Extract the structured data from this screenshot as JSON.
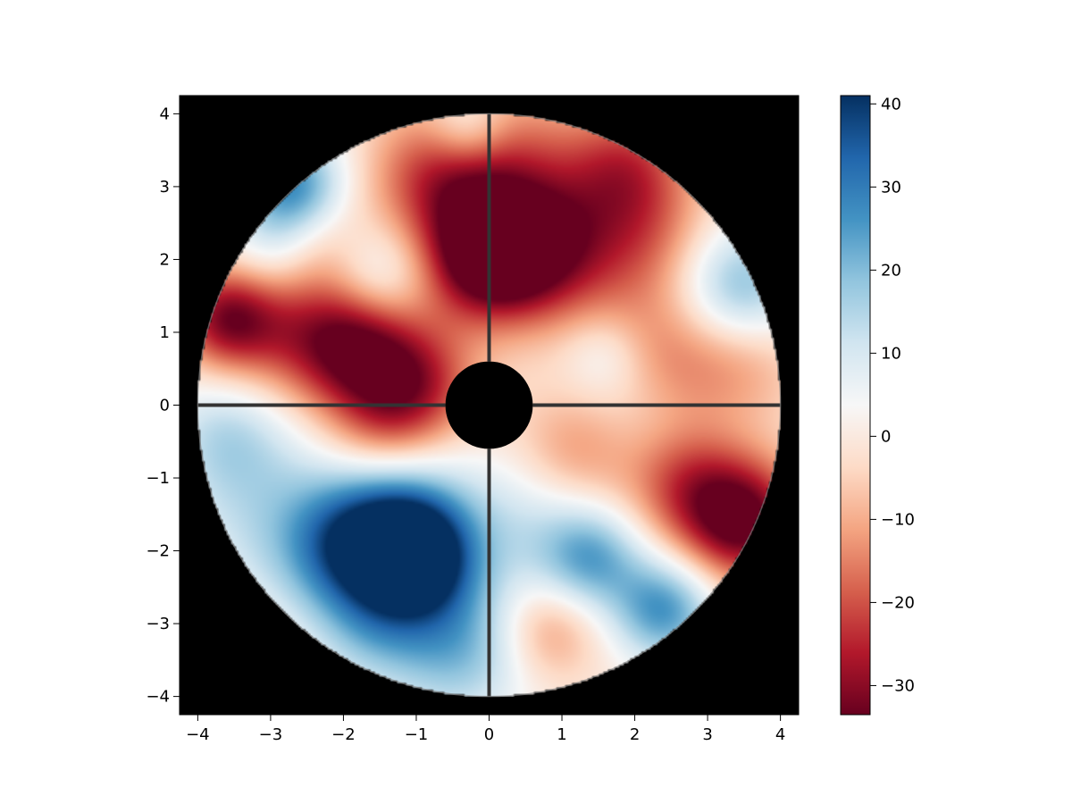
{
  "chart_data": {
    "type": "heatmap",
    "title": "",
    "xlabel": "",
    "ylabel": "",
    "xlim": [
      -4.25,
      4.25
    ],
    "ylim": [
      -4.25,
      4.25
    ],
    "x_ticks": [
      {
        "value": -4,
        "label": "−4"
      },
      {
        "value": -3,
        "label": "−3"
      },
      {
        "value": -2,
        "label": "−2"
      },
      {
        "value": -1,
        "label": "−1"
      },
      {
        "value": 0,
        "label": "0"
      },
      {
        "value": 1,
        "label": "1"
      },
      {
        "value": 2,
        "label": "2"
      },
      {
        "value": 3,
        "label": "3"
      },
      {
        "value": 4,
        "label": "4"
      }
    ],
    "y_ticks": [
      {
        "value": -4,
        "label": "−4"
      },
      {
        "value": -3,
        "label": "−3"
      },
      {
        "value": -2,
        "label": "−2"
      },
      {
        "value": -1,
        "label": "−1"
      },
      {
        "value": 0,
        "label": "0"
      },
      {
        "value": 1,
        "label": "1"
      },
      {
        "value": 2,
        "label": "2"
      },
      {
        "value": 3,
        "label": "3"
      },
      {
        "value": 4,
        "label": "4"
      }
    ],
    "pupil": {
      "outer_radius": 4.0,
      "inner_radius": 0.6,
      "spider_arms": 4
    },
    "background_color": "#000000",
    "spider_color": "#333333",
    "colormap": "RdBu",
    "colorbar": {
      "min": -33.5,
      "max": 41,
      "ticks": [
        {
          "value": 40,
          "label": "40"
        },
        {
          "value": 30,
          "label": "30"
        },
        {
          "value": 20,
          "label": "20"
        },
        {
          "value": 10,
          "label": "10"
        },
        {
          "value": 0,
          "label": "0"
        },
        {
          "value": -10,
          "label": "−10"
        },
        {
          "value": -20,
          "label": "−20"
        },
        {
          "value": -30,
          "label": "−30"
        }
      ],
      "stops": [
        "#67001f",
        "#b2182b",
        "#d6604d",
        "#f4a582",
        "#fddbc7",
        "#f7f7f7",
        "#d1e5f0",
        "#92c5de",
        "#4393c3",
        "#2166ac",
        "#053061"
      ]
    },
    "blobs": [
      {
        "x": -0.1,
        "y": 2.0,
        "amp": -30,
        "s": 0.6
      },
      {
        "x": 0.7,
        "y": 2.1,
        "amp": -28,
        "s": 0.7
      },
      {
        "x": 0.3,
        "y": 3.3,
        "amp": -15,
        "s": 0.8
      },
      {
        "x": -0.7,
        "y": 3.1,
        "amp": -20,
        "s": 0.7
      },
      {
        "x": 1.9,
        "y": 3.3,
        "amp": -18,
        "s": 0.6
      },
      {
        "x": 2.1,
        "y": 2.3,
        "amp": -15,
        "s": 0.7
      },
      {
        "x": -3.6,
        "y": 1.2,
        "amp": -28,
        "s": 0.5
      },
      {
        "x": -2.6,
        "y": 1.0,
        "amp": -18,
        "s": 0.7
      },
      {
        "x": -1.8,
        "y": 0.8,
        "amp": -24,
        "s": 0.6
      },
      {
        "x": -1.0,
        "y": 0.3,
        "amp": -22,
        "s": 0.6
      },
      {
        "x": -1.5,
        "y": -0.4,
        "amp": -15,
        "s": 0.6
      },
      {
        "x": -2.4,
        "y": 2.2,
        "amp": -10,
        "s": 0.5
      },
      {
        "x": 2.4,
        "y": 0.7,
        "amp": -14,
        "s": 0.7
      },
      {
        "x": 3.5,
        "y": 0.6,
        "amp": -10,
        "s": 0.6
      },
      {
        "x": 1.2,
        "y": -0.6,
        "amp": -14,
        "s": 0.6
      },
      {
        "x": 3.5,
        "y": -1.6,
        "amp": -34,
        "s": 0.6
      },
      {
        "x": 2.7,
        "y": -1.1,
        "amp": -18,
        "s": 0.6
      },
      {
        "x": 0.8,
        "y": -3.1,
        "amp": -14,
        "s": 0.5
      },
      {
        "x": -1.0,
        "y": -2.1,
        "amp": 42,
        "s": 0.55
      },
      {
        "x": -1.3,
        "y": -1.5,
        "amp": 25,
        "s": 0.7
      },
      {
        "x": -2.0,
        "y": -2.0,
        "amp": 22,
        "s": 0.6
      },
      {
        "x": -0.4,
        "y": -3.3,
        "amp": 20,
        "s": 0.7
      },
      {
        "x": -1.6,
        "y": -3.0,
        "amp": 15,
        "s": 0.6
      },
      {
        "x": -3.0,
        "y": -1.5,
        "amp": 12,
        "s": 0.9
      },
      {
        "x": -3.6,
        "y": -0.4,
        "amp": 12,
        "s": 0.6
      },
      {
        "x": -2.7,
        "y": 3.0,
        "amp": 28,
        "s": 0.5
      },
      {
        "x": -2.9,
        "y": 2.1,
        "amp": 12,
        "s": 0.5
      },
      {
        "x": 3.4,
        "y": 1.6,
        "amp": 22,
        "s": 0.6
      },
      {
        "x": 1.4,
        "y": -2.1,
        "amp": 22,
        "s": 0.5
      },
      {
        "x": 2.4,
        "y": -2.8,
        "amp": 26,
        "s": 0.5
      },
      {
        "x": 0.5,
        "y": -1.6,
        "amp": 10,
        "s": 0.7
      },
      {
        "x": -1.5,
        "y": 1.8,
        "amp": 12,
        "s": 0.5
      },
      {
        "x": -0.3,
        "y": 3.8,
        "amp": 14,
        "s": 0.4
      },
      {
        "x": 1.6,
        "y": 0.7,
        "amp": 8,
        "s": 0.4
      },
      {
        "x": 1.8,
        "y": 0.0,
        "amp": 6,
        "s": 0.6
      }
    ]
  }
}
